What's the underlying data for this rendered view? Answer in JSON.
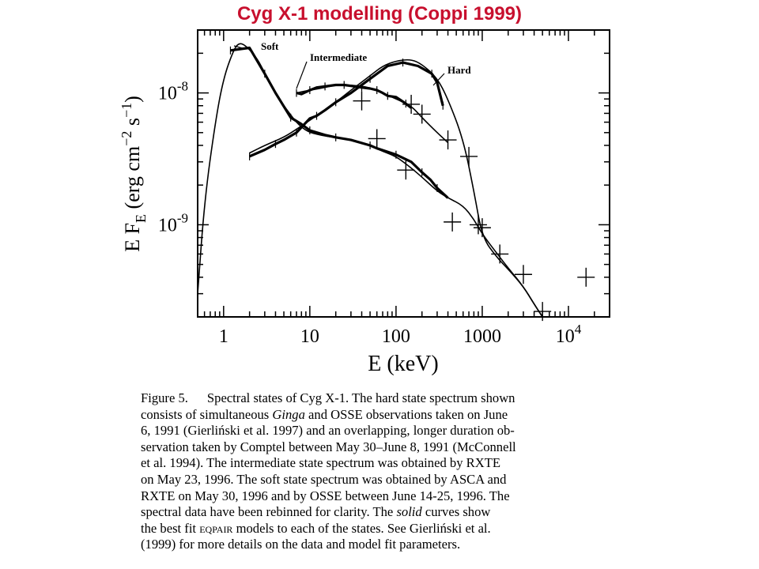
{
  "slide": {
    "title": "Cyg X-1 modelling (Coppi 1999)"
  },
  "chart_data": {
    "type": "line",
    "xscale": "log",
    "yscale": "log",
    "xlim": [
      0.5,
      30000
    ],
    "ylim": [
      2e-10,
      3e-08
    ],
    "xlabel": "E (keV)",
    "ylabel": "E F_E (erg cm^-2 s^-1)",
    "xticks": [
      {
        "value": 1,
        "label": "1"
      },
      {
        "value": 10,
        "label": "10"
      },
      {
        "value": 100,
        "label": "100"
      },
      {
        "value": 1000,
        "label": "1000"
      },
      {
        "value": 10000,
        "label": "10^4"
      }
    ],
    "yticks": [
      {
        "value": 1e-09,
        "label": "10^-9"
      },
      {
        "value": 1e-08,
        "label": "10^-8"
      }
    ],
    "series": [
      {
        "name": "Soft",
        "model": [
          [
            0.5,
            3e-10
          ],
          [
            0.6,
            1.5e-09
          ],
          [
            0.8,
            6e-09
          ],
          [
            1,
            1.3e-08
          ],
          [
            1.3,
            2.1e-08
          ],
          [
            1.5,
            2.4e-08
          ],
          [
            1.8,
            2.3e-08
          ],
          [
            2.5,
            1.8e-08
          ],
          [
            3,
            1.4e-08
          ],
          [
            4,
            1e-08
          ],
          [
            5,
            8e-09
          ],
          [
            6,
            6.8e-09
          ],
          [
            7,
            6e-09
          ],
          [
            8,
            5.5e-09
          ],
          [
            10,
            5e-09
          ],
          [
            15,
            4.7e-09
          ],
          [
            20,
            4.6e-09
          ],
          [
            30,
            4.4e-09
          ],
          [
            50,
            4e-09
          ],
          [
            70,
            3.6e-09
          ],
          [
            100,
            3.3e-09
          ],
          [
            150,
            2.7e-09
          ],
          [
            200,
            2.3e-09
          ],
          [
            300,
            1.8e-09
          ],
          [
            400,
            1.6e-09
          ],
          [
            600,
            1.4e-09
          ],
          [
            800,
            1.1e-09
          ],
          [
            1000,
            8.5e-10
          ],
          [
            1500,
            6e-10
          ],
          [
            2000,
            4.7e-10
          ],
          [
            3000,
            3.4e-10
          ],
          [
            4000,
            2.5e-10
          ],
          [
            5000,
            2e-10
          ]
        ],
        "data": [
          [
            1.2,
            2.1e-08
          ],
          [
            2,
            2.2e-08
          ],
          [
            3,
            1.4e-08
          ],
          [
            4,
            1e-08
          ],
          [
            6,
            6.5e-09
          ],
          [
            8,
            5.8e-09
          ],
          [
            10,
            5.2e-09
          ],
          [
            15,
            4.8e-09
          ],
          [
            20,
            4.6e-09
          ],
          [
            30,
            4.4e-09
          ],
          [
            50,
            4e-09
          ],
          [
            60,
            3.8e-09
          ],
          [
            100,
            3.4e-09
          ],
          [
            150,
            3e-09
          ],
          [
            200,
            2.5e-09
          ],
          [
            250,
            2.2e-09
          ],
          [
            300,
            1.9e-09
          ],
          [
            400,
            1.6e-09
          ]
        ]
      },
      {
        "name": "Intermediate",
        "model": [
          [
            7,
            1e-08
          ],
          [
            10,
            1.05e-08
          ],
          [
            15,
            1.1e-08
          ],
          [
            20,
            1.15e-08
          ],
          [
            30,
            1.15e-08
          ],
          [
            50,
            1.1e-08
          ],
          [
            70,
            1e-08
          ],
          [
            100,
            9e-09
          ],
          [
            150,
            8e-09
          ],
          [
            200,
            6.5e-09
          ],
          [
            300,
            5e-09
          ],
          [
            400,
            4.2e-09
          ]
        ],
        "data": [
          [
            7,
            1e-08
          ],
          [
            8,
            9.8e-09
          ],
          [
            10,
            1.05e-08
          ],
          [
            12,
            1.1e-08
          ],
          [
            15,
            1.12e-08
          ],
          [
            20,
            1.15e-08
          ],
          [
            25,
            1.15e-08
          ],
          [
            30,
            1.13e-08
          ],
          [
            40,
            1.1e-08
          ],
          [
            50,
            1.08e-08
          ],
          [
            60,
            1.05e-08
          ],
          [
            70,
            1e-08
          ],
          [
            80,
            9.5e-09
          ],
          [
            100,
            9.3e-09
          ],
          [
            130,
            8.3e-09
          ],
          [
            150,
            7.7e-09
          ]
        ]
      },
      {
        "name": "Hard",
        "model": [
          [
            2,
            3.5e-09
          ],
          [
            3,
            4e-09
          ],
          [
            5,
            4.6e-09
          ],
          [
            7,
            5.3e-09
          ],
          [
            10,
            6.2e-09
          ],
          [
            20,
            8.5e-09
          ],
          [
            30,
            1.05e-08
          ],
          [
            50,
            1.35e-08
          ],
          [
            70,
            1.6e-08
          ],
          [
            100,
            1.75e-08
          ],
          [
            150,
            1.8e-08
          ],
          [
            200,
            1.65e-08
          ],
          [
            300,
            1.3e-08
          ],
          [
            400,
            9e-09
          ],
          [
            600,
            4.5e-09
          ],
          [
            800,
            1.8e-09
          ],
          [
            1000,
            8e-10
          ],
          [
            1500,
            5.6e-10
          ],
          [
            2000,
            4.6e-10
          ],
          [
            3000,
            3.4e-10
          ],
          [
            4000,
            2.5e-10
          ],
          [
            5000,
            2e-10
          ]
        ],
        "data": [
          [
            2,
            3.3e-09
          ],
          [
            3,
            3.7e-09
          ],
          [
            4,
            4.1e-09
          ],
          [
            5,
            4.4e-09
          ],
          [
            7,
            5e-09
          ],
          [
            10,
            6.4e-09
          ],
          [
            12,
            6.7e-09
          ],
          [
            15,
            7.4e-09
          ],
          [
            20,
            8.5e-09
          ],
          [
            30,
            1e-08
          ],
          [
            50,
            1.28e-08
          ],
          [
            80,
            1.6e-08
          ],
          [
            120,
            1.7e-08
          ],
          [
            180,
            1.6e-08
          ],
          [
            260,
            1.4e-08
          ],
          [
            300,
            1.2e-08
          ],
          [
            350,
            8e-09
          ]
        ]
      }
    ],
    "cross_points": [
      {
        "x": 40,
        "y": 8.7e-09
      },
      {
        "x": 150,
        "y": 8.2e-09
      },
      {
        "x": 200,
        "y": 6.9e-09
      },
      {
        "x": 60,
        "y": 4.5e-09
      },
      {
        "x": 130,
        "y": 2.6e-09
      },
      {
        "x": 400,
        "y": 4.4e-09
      },
      {
        "x": 700,
        "y": 3.3e-09
      },
      {
        "x": 450,
        "y": 1.05e-09
      },
      {
        "x": 900,
        "y": 1e-09
      },
      {
        "x": 1000,
        "y": 9.5e-10
      },
      {
        "x": 1600,
        "y": 6e-10
      },
      {
        "x": 3000,
        "y": 4.2e-10
      },
      {
        "x": 5000,
        "y": 2.2e-10
      },
      {
        "x": 16000,
        "y": 4e-10
      }
    ],
    "annotations": [
      {
        "text": "Soft",
        "near_series": "Soft"
      },
      {
        "text": "Intermediate",
        "near_series": "Intermediate"
      },
      {
        "text": "Hard",
        "near_series": "Hard"
      }
    ],
    "grid": false,
    "legend": "none"
  },
  "caption": {
    "label": "Figure 5.",
    "line1_text": "Spectral states of Cyg X-1. The hard state spectrum shown",
    "line2_a": "consists of simultaneous ",
    "line2_ginga": "Ginga",
    "line2_b": " and OSSE observations taken on June",
    "line3": "6, 1991 (Gierliński et al. 1997) and an overlapping, longer duration ob-",
    "line4": "servation taken by Comptel between May 30–June 8, 1991 (McConnell",
    "line5": "et al. 1994). The intermediate state spectrum was obtained by RXTE",
    "line6": "on May 23, 1996. The soft state spectrum was obtained by ASCA and",
    "line7": "RXTE on May 30, 1996 and by OSSE between June 14-25, 1996. The",
    "line8_a": "spectral data have been rebinned for clarity. The ",
    "line8_solid": "solid",
    "line8_b": " curves show",
    "line9_a": "the best fit ",
    "line9_model": "eqpair",
    "line9_b": " models to each of the states. See Gierliński et al.",
    "line10": "(1999) for more details on the data and model fit parameters."
  }
}
